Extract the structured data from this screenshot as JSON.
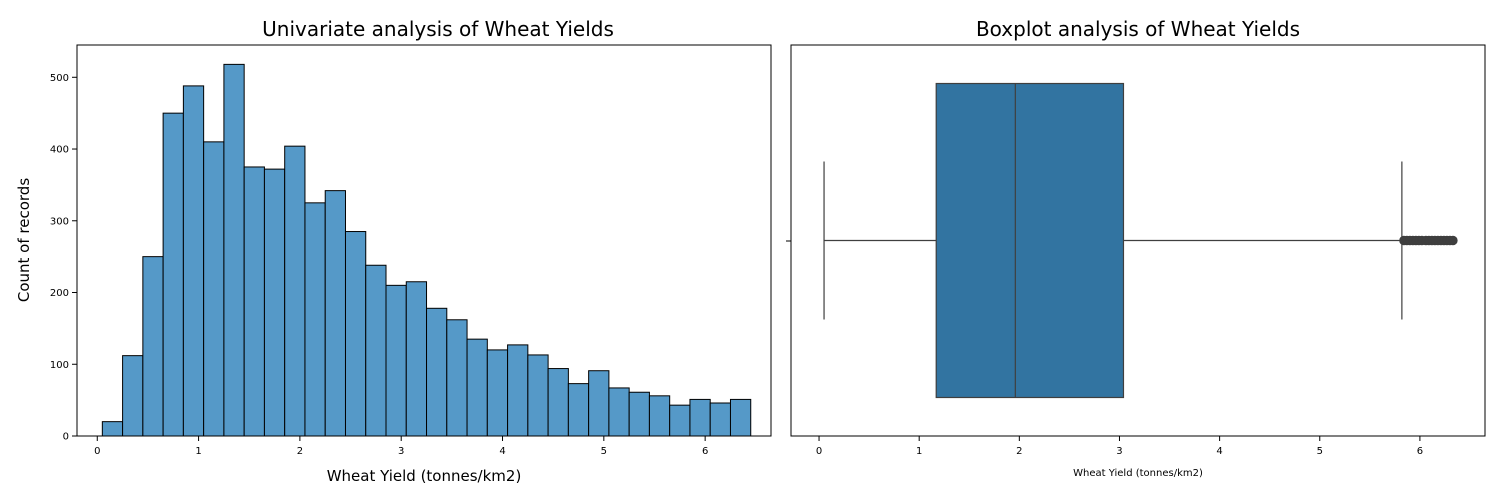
{
  "chart_data": [
    {
      "type": "bar",
      "title": "Univariate analysis of Wheat Yields",
      "xlabel": "Wheat Yield (tonnes/km2)",
      "ylabel": "Count of records",
      "xlim": [
        -0.2,
        6.65
      ],
      "ylim": [
        0,
        545
      ],
      "xticks": [
        0,
        1,
        2,
        3,
        4,
        5,
        6
      ],
      "yticks": [
        0,
        100,
        200,
        300,
        400,
        500
      ],
      "bin_start": 0.05,
      "bin_width": 0.2,
      "values": [
        20,
        112,
        250,
        450,
        488,
        410,
        518,
        375,
        372,
        404,
        325,
        342,
        285,
        238,
        210,
        215,
        178,
        162,
        135,
        120,
        127,
        113,
        94,
        73,
        91,
        67,
        61,
        56,
        43,
        51,
        46,
        51
      ],
      "bar_color": "#5599c8",
      "edge_color": "#000000",
      "grid": false
    },
    {
      "type": "boxplot",
      "title": "Boxplot analysis of Wheat Yields",
      "xlabel": "Wheat Yield (tonnes/km2)",
      "xlim": [
        -0.28,
        6.65
      ],
      "xticks": [
        0,
        1,
        2,
        3,
        4,
        5,
        6
      ],
      "whisker_low": 0.05,
      "q1": 1.17,
      "median": 1.96,
      "q3": 3.04,
      "whisker_high": 5.82,
      "outliers": [
        5.84,
        5.87,
        5.9,
        5.93,
        5.96,
        5.99,
        6.02,
        6.06,
        6.09,
        6.12,
        6.15,
        6.18,
        6.21,
        6.24,
        6.27,
        6.3,
        6.33
      ],
      "box_color": "#3274a1",
      "line_color": "#3f3f3f",
      "grid": false
    }
  ]
}
